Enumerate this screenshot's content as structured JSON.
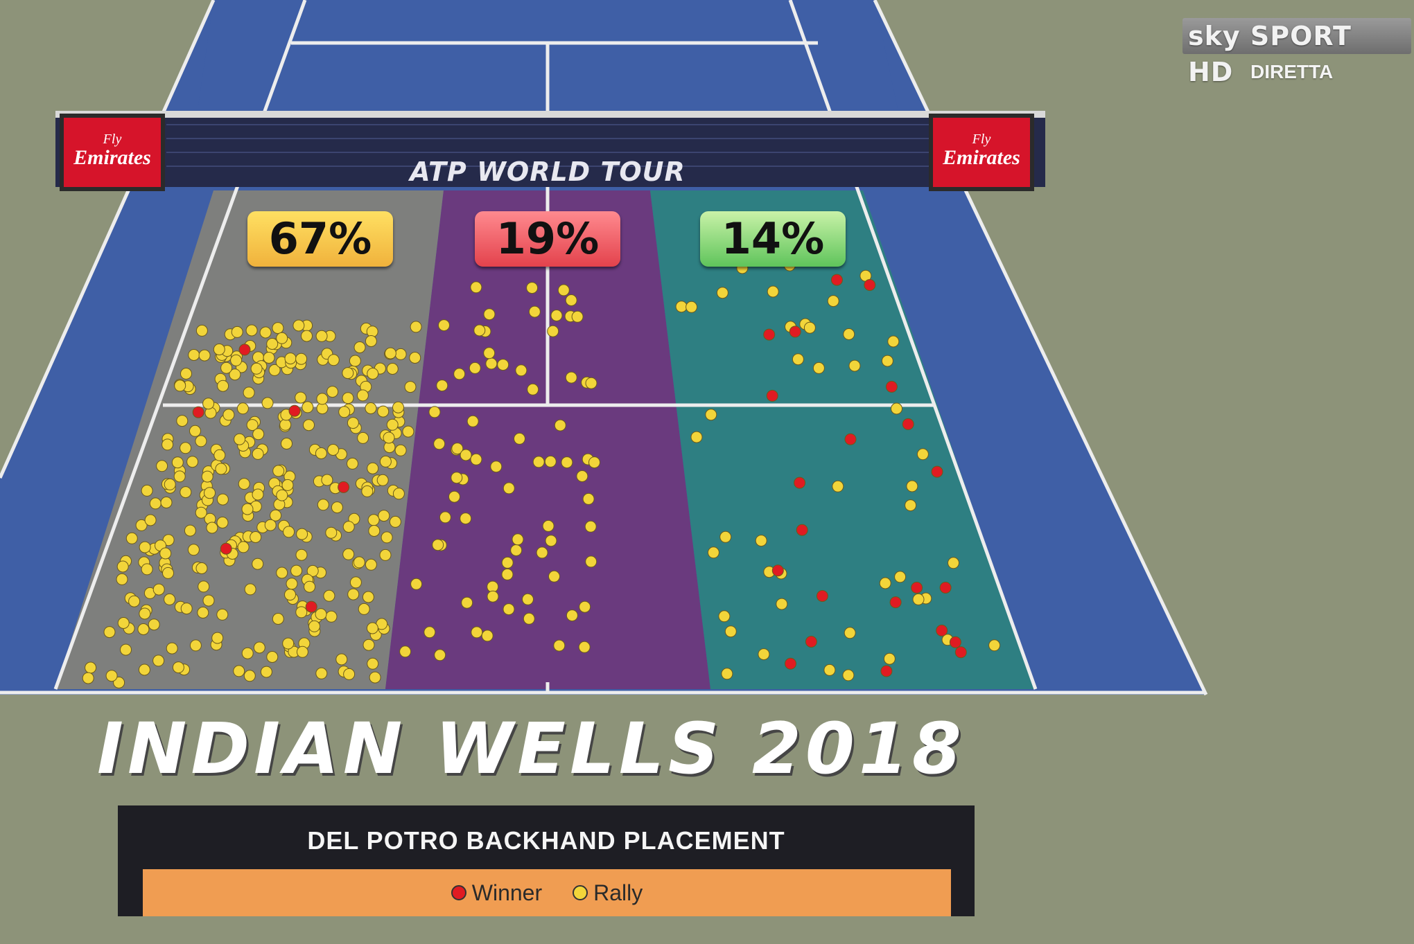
{
  "broadcaster": {
    "logo": "sky SPORT HD",
    "status": "DIRETTA"
  },
  "sponsor": {
    "line1": "Fly",
    "line2": "Emirates"
  },
  "net_text": "ATP WORLD TOUR",
  "zones": {
    "left": {
      "percent": "67%",
      "color": "#7e7f7d",
      "badge_color": "#f5c84c"
    },
    "center": {
      "percent": "19%",
      "color": "#6a3a7e",
      "badge_color": "#ee5a60"
    },
    "right": {
      "percent": "14%",
      "color": "#2e7f82",
      "badge_color": "#7fd46f"
    }
  },
  "court": {
    "doubles_alley_color": "#3f5fa6",
    "surround_color": "#8d9379",
    "line_color": "#ededed"
  },
  "title": "INDIAN WELLS 2018",
  "panel": {
    "title": "DEL POTRO BACKHAND PLACEMENT",
    "legend": [
      {
        "label": "Winner",
        "color": "#e01b22",
        "icon": "red-ball-icon"
      },
      {
        "label": "Rally",
        "color": "#f2d53a",
        "icon": "yellow-ball-icon"
      }
    ]
  }
}
